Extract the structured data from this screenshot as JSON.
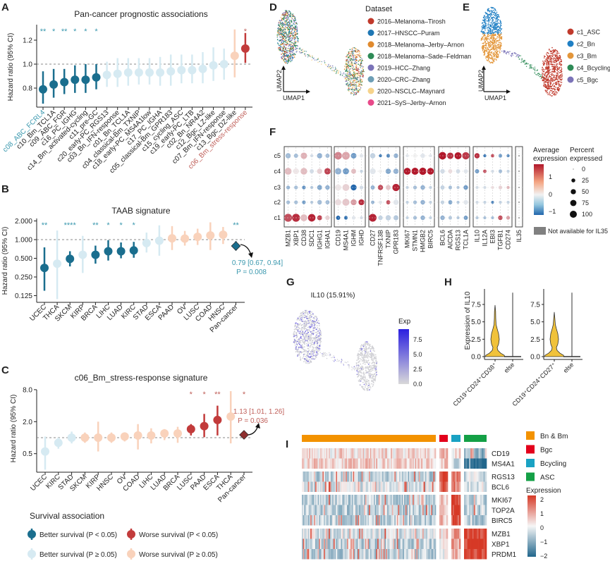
{
  "panels": {
    "A": "A",
    "B": "B",
    "C": "C",
    "D": "D",
    "E": "E",
    "F": "F",
    "G": "G",
    "H": "H",
    "I": "I"
  },
  "colors": {
    "better_sig": "#1a6e8e",
    "better_ns": "#d6eaf2",
    "worse_sig": "#c23b3b",
    "worse_ns": "#f9d2bb",
    "better_text": "#3a98ae",
    "worse_text": "#c0605a"
  },
  "chart_data": [
    {
      "id": "A",
      "type": "scatter",
      "subtype": "forest",
      "title": "Pan-cancer prognostic associations",
      "ylabel": "Hazard ratio (95% CI)",
      "yscale": "linear",
      "ylim": [
        0.65,
        1.32
      ],
      "yticks": [
        "0.8",
        "1.0",
        "1.2"
      ],
      "reference_line": 1.0,
      "categories": [
        "c08_ABC_FCRL4",
        "c10_Bm_TCL1A",
        "c09_ABC_FGR",
        "c16_PC_IGHG",
        "c14_Bm_activated-cycling",
        "c11_pre-GC",
        "c20_early-PC_RGS13",
        "c03_Bn_IFN-response",
        "c01_Bn_TCL1A",
        "c04_classical-Bm_TXNIP",
        "c18_early-PC_MS4A1low",
        "c17_PC_IGHA",
        "c05_classical-Bm_GPR183",
        "c15_cycling_ASC",
        "c19_early-PC_LTB",
        "c02_Bn_NR4A2",
        "c12_Bgc_LZ-like",
        "c07_Bm_IFN-response",
        "c13_Bgc_DZ-like",
        "c06_Bm_stress-response"
      ],
      "hr": [
        0.79,
        0.83,
        0.85,
        0.87,
        0.87,
        0.89,
        0.91,
        0.92,
        0.93,
        0.93,
        0.93,
        0.93,
        0.94,
        0.95,
        0.95,
        0.96,
        0.99,
        1.0,
        1.07,
        1.13
      ],
      "ci_low": [
        0.67,
        0.72,
        0.75,
        0.76,
        0.76,
        0.79,
        0.81,
        0.81,
        0.82,
        0.83,
        0.83,
        0.82,
        0.82,
        0.84,
        0.84,
        0.84,
        0.86,
        0.87,
        0.89,
        1.01
      ],
      "ci_high": [
        0.94,
        0.96,
        0.96,
        0.99,
        1.0,
        1.0,
        1.02,
        1.05,
        1.05,
        1.05,
        1.05,
        1.06,
        1.08,
        1.08,
        1.08,
        1.1,
        1.14,
        1.13,
        1.29,
        1.26
      ],
      "group": [
        "better_sig",
        "better_sig",
        "better_sig",
        "better_sig",
        "better_sig",
        "better_sig",
        "better_ns",
        "better_ns",
        "better_ns",
        "better_ns",
        "better_ns",
        "better_ns",
        "better_ns",
        "better_ns",
        "better_ns",
        "better_ns",
        "better_ns",
        "better_ns",
        "worse_ns",
        "worse_sig"
      ],
      "stars": [
        "**",
        "*",
        "**",
        "*",
        "*",
        "*",
        "",
        "",
        "",
        "",
        "",
        "",
        "",
        "",
        "",
        "",
        "",
        "",
        "",
        "*"
      ],
      "highlight": {
        "c08_ABC_FCRL4": "better_text",
        "c06_Bm_stress-response": "worse_text"
      }
    },
    {
      "id": "B",
      "type": "scatter",
      "subtype": "forest",
      "title": "TAAB signature",
      "ylabel": "Hazard ratio (95% CI)",
      "yscale": "log2",
      "ylim": [
        0.1,
        2.1
      ],
      "yticks": [
        "0.125",
        "0.250",
        "0.500",
        "1.000",
        "2.000"
      ],
      "reference_line": 1.0,
      "categories": [
        "UCEC",
        "THCA",
        "SKCM",
        "KIRP",
        "BRCA",
        "LIHC",
        "LUAD",
        "KIRC",
        "STAD",
        "ESCA",
        "PAAD",
        "OV",
        "LUSC",
        "COAD",
        "HNSC",
        "Pan-cancer"
      ],
      "hr": [
        0.35,
        0.41,
        0.49,
        0.57,
        0.57,
        0.65,
        0.65,
        0.67,
        0.88,
        0.96,
        1.05,
        1.04,
        1.11,
        1.17,
        1.2,
        0.79
      ],
      "ci_low": [
        0.15,
        0.11,
        0.37,
        0.29,
        0.41,
        0.46,
        0.5,
        0.51,
        0.62,
        0.55,
        0.68,
        0.8,
        0.82,
        0.68,
        0.85,
        0.67
      ],
      "ci_high": [
        0.75,
        1.4,
        0.65,
        1.15,
        0.8,
        0.98,
        0.9,
        0.92,
        1.3,
        1.7,
        1.65,
        1.38,
        1.5,
        1.9,
        1.6,
        0.94
      ],
      "group": [
        "better_sig",
        "better_ns",
        "better_sig",
        "better_ns",
        "better_sig",
        "better_sig",
        "better_sig",
        "better_sig",
        "better_ns",
        "better_ns",
        "worse_ns",
        "worse_ns",
        "worse_ns",
        "worse_ns",
        "worse_ns",
        "pan_better"
      ],
      "stars": [
        "**",
        "",
        "****",
        "",
        "**",
        "*",
        "*",
        "*",
        "",
        "",
        "",
        "",
        "",
        "",
        "",
        "**"
      ],
      "annotation": {
        "ci": "0.79 [0.67, 0.94]",
        "p": "P = 0.008"
      }
    },
    {
      "id": "C",
      "type": "scatter",
      "subtype": "forest",
      "title": "c06_Bm_stress-response signature",
      "ylabel": "Hazard ratio (95% CI)",
      "yscale": "log2",
      "ylim": [
        0.3,
        9
      ],
      "yticks": [
        "0.5",
        "2.0",
        "8.0"
      ],
      "reference_line": 1.0,
      "categories": [
        "UCEC",
        "KIRC",
        "STAD",
        "SKCM",
        "KIRP",
        "HNSC",
        "OV",
        "COAD",
        "LIHC",
        "LUAD",
        "BRCA",
        "LUSC",
        "PAAD",
        "ESCA",
        "THCA",
        "Pan-cancer"
      ],
      "hr": [
        0.55,
        0.8,
        1.0,
        1.0,
        1.0,
        1.0,
        1.05,
        1.1,
        1.1,
        1.2,
        1.2,
        1.45,
        1.65,
        2.15,
        2.5,
        1.13
      ],
      "ci_low": [
        0.25,
        0.62,
        0.78,
        0.8,
        0.55,
        0.8,
        0.85,
        0.6,
        0.78,
        0.9,
        0.8,
        1.1,
        1.02,
        1.1,
        0.78,
        1.01
      ],
      "ci_high": [
        1.05,
        1.0,
        1.3,
        1.25,
        2.0,
        1.25,
        1.25,
        1.8,
        1.5,
        1.45,
        1.6,
        1.8,
        2.8,
        4.0,
        7.5,
        1.26
      ],
      "group": [
        "better_ns",
        "better_ns",
        "better_ns",
        "worse_ns",
        "worse_ns",
        "worse_ns",
        "worse_ns",
        "worse_ns",
        "worse_ns",
        "worse_ns",
        "worse_ns",
        "worse_sig",
        "worse_sig",
        "worse_sig",
        "worse_ns",
        "pan_worse"
      ],
      "stars": [
        "",
        "",
        "",
        "",
        "",
        "",
        "",
        "",
        "",
        "",
        "",
        "*",
        "*",
        "**",
        "",
        "*"
      ],
      "annotation": {
        "ci": "1.13 [1.01, 1.26]",
        "p": "P = 0.036"
      }
    },
    {
      "id": "F",
      "type": "heatmap",
      "subtype": "dotplot",
      "rows": [
        "c5",
        "c4",
        "c3",
        "c2",
        "c1"
      ],
      "gene_groups": [
        [
          "MZB1",
          "XBP1",
          "CD38",
          "SDC1",
          "IGHG1",
          "IGHA1"
        ],
        [
          "CD19",
          "MS4A1",
          "IGHM",
          "IGHD"
        ],
        [
          "CD27",
          "TNFRSF13B",
          "TXNIP",
          "GPR183"
        ],
        [
          "MKI67",
          "STMN1",
          "HMGB2",
          "BIRC5"
        ],
        [
          "BCL6",
          "AICDA",
          "RGS13",
          "TCL1A"
        ],
        [
          "IL10",
          "IL12A",
          "EBI3",
          "TGFB1",
          "CD274"
        ],
        [
          "IL35"
        ]
      ],
      "note_row_order": "values listed c1,c2,c3,c4,c5",
      "avg_expression": {
        "MZB1": [
          1.5,
          -0.5,
          -0.6,
          0.5,
          -0.5
        ],
        "XBP1": [
          1.8,
          -0.5,
          -0.5,
          0.1,
          -0.5
        ],
        "CD38": [
          0.5,
          -0.8,
          -0.9,
          0.5,
          0.6
        ],
        "SDC1": [
          1.9,
          -0.4,
          -0.4,
          -0.2,
          -0.2
        ],
        "IGHG1": [
          1.6,
          -0.5,
          -0.7,
          0.3,
          -0.6
        ],
        "IGHA1": [
          0.3,
          -0.5,
          -0.6,
          1.6,
          -0.5
        ],
        "CD19": [
          -1.3,
          0.2,
          0.1,
          -0.6,
          1.0
        ],
        "MS4A1": [
          -1.2,
          0.4,
          0.3,
          -0.8,
          0.7
        ],
        "IGHM": [
          -0.1,
          0.8,
          -1.3,
          0.5,
          -0.8
        ],
        "IGHD": [
          -0.2,
          1.8,
          -0.2,
          -0.3,
          -0.1
        ],
        "CD27": [
          1.9,
          -0.6,
          -0.6,
          -0.1,
          -0.3
        ],
        "TNFRSF13B": [
          -0.3,
          -0.1,
          1.5,
          0,
          -1.2
        ],
        "TXNIP": [
          -0.3,
          1.5,
          0.4,
          -0.7,
          -1.0
        ],
        "GPR183": [
          -0.4,
          -0.1,
          1.9,
          -0.6,
          -0.6
        ],
        "MKI67": [
          -0.3,
          -0.3,
          -0.3,
          2,
          -0.1
        ],
        "STMN1": [
          -0.5,
          -0.5,
          -0.5,
          2,
          0
        ],
        "HMGB2": [
          -0.6,
          -0.6,
          -0.6,
          2,
          -0.1
        ],
        "BIRC5": [
          -0.3,
          -0.3,
          -0.3,
          2,
          -0.1
        ],
        "BCL6": [
          -0.6,
          -0.3,
          -0.3,
          -0.2,
          2
        ],
        "AICDA": [
          -0.4,
          -0.7,
          -0.5,
          0.2,
          1.8
        ],
        "RGS13": [
          -0.4,
          -0.4,
          -0.4,
          -0.2,
          2
        ],
        "TCL1A": [
          -0.8,
          -0.1,
          -0.8,
          -0.1,
          1.7
        ],
        "IL10": [
          -0.4,
          -0.2,
          -0.2,
          -0.8,
          1.8
        ],
        "IL12A": [
          -0.5,
          -0.3,
          -0.2,
          1.5,
          -1.2
        ],
        "EBI3": [
          -0.5,
          -1,
          0.2,
          -0.2,
          1.5
        ],
        "TGFB1": [
          1.5,
          -0.3,
          0.3,
          -0.5,
          -0.8
        ],
        "CD274": [
          0.8,
          -0.3,
          0.6,
          -0.3,
          -1.0
        ]
      },
      "percent_expressed": {
        "MZB1": [
          85,
          10,
          10,
          60,
          30
        ],
        "XBP1": [
          85,
          10,
          10,
          40,
          15
        ],
        "CD38": [
          60,
          10,
          10,
          55,
          50
        ],
        "SDC1": [
          75,
          5,
          5,
          15,
          5
        ],
        "IGHG1": [
          25,
          20,
          25,
          30,
          30
        ],
        "IGHA1": [
          20,
          15,
          20,
          50,
          15
        ],
        "CD19": [
          15,
          45,
          45,
          50,
          75
        ],
        "MS4A1": [
          10,
          65,
          60,
          45,
          80
        ],
        "IGHM": [
          10,
          40,
          40,
          25,
          35
        ],
        "IGHD": [
          5,
          40,
          10,
          5,
          10
        ],
        "CD27": [
          80,
          8,
          15,
          40,
          30
        ],
        "TNFRSF13B": [
          20,
          8,
          30,
          10,
          5
        ],
        "TXNIP": [
          30,
          15,
          25,
          30,
          10
        ],
        "GPR183": [
          25,
          30,
          70,
          30,
          20
        ],
        "MKI67": [
          5,
          5,
          5,
          60,
          5
        ],
        "STMN1": [
          10,
          10,
          10,
          65,
          15
        ],
        "HMGB2": [
          20,
          20,
          20,
          70,
          20
        ],
        "BIRC5": [
          5,
          5,
          5,
          55,
          5
        ],
        "BCL6": [
          20,
          10,
          15,
          20,
          75
        ],
        "AICDA": [
          10,
          15,
          10,
          15,
          50
        ],
        "RGS13": [
          5,
          5,
          5,
          15,
          65
        ],
        "TCL1A": [
          15,
          20,
          20,
          15,
          70
        ],
        "IL10": [
          5,
          5,
          5,
          15,
          30
        ],
        "IL12A": [
          5,
          5,
          5,
          8,
          5
        ],
        "EBI3": [
          5,
          5,
          5,
          5,
          8
        ],
        "TGFB1": [
          20,
          5,
          10,
          10,
          10
        ],
        "CD274": [
          10,
          5,
          5,
          5,
          5
        ]
      },
      "color_legend": {
        "title1": "Average",
        "title2": "expression",
        "ticks": [
          "1",
          "0",
          "−1"
        ]
      },
      "size_legend": {
        "title1": "Percent",
        "title2": "expressed",
        "ticks": [
          "0",
          "25",
          "50",
          "75",
          "100"
        ]
      },
      "na_note": "Not available for IL35"
    }
  ],
  "legend_survival": {
    "title": "Survival association",
    "items": [
      "Better survival (P < 0.05)",
      "Worse survival (P < 0.05)",
      "Better survival (P ≥ 0.05)",
      "Worse survival (P ≥ 0.05)"
    ]
  },
  "panel_D": {
    "axis_x": "UMAP1",
    "axis_y": "UMAP2",
    "legend_title": "Dataset",
    "datasets": [
      {
        "label": "2016–Melanoma–Tirosh",
        "color": "#c0392b"
      },
      {
        "label": "2017–HNSCC–Puram",
        "color": "#1f77b4"
      },
      {
        "label": "2018–Melanoma–Jerby–Arnon",
        "color": "#e08a2e"
      },
      {
        "label": "2018–Melanoma–Sade–Feldman",
        "color": "#2e8b57"
      },
      {
        "label": "2019–HCC–Zhang",
        "color": "#7b73b8"
      },
      {
        "label": "2020–CRC–Zhang",
        "color": "#6d9eb5"
      },
      {
        "label": "2020–NSCLC–Maynard",
        "color": "#f6d38b"
      },
      {
        "label": "2021–SyS–Jerby–Arnon",
        "color": "#e84a8a"
      }
    ]
  },
  "panel_E": {
    "axis_x": "UMAP1",
    "axis_y": "UMAP2",
    "clusters": [
      {
        "label": "c1_ASC",
        "color": "#c0392b"
      },
      {
        "label": "c2_Bn",
        "color": "#1f7fc4"
      },
      {
        "label": "c3_Bm",
        "color": "#e3963a"
      },
      {
        "label": "c4_Bcycling",
        "color": "#2e8b57"
      },
      {
        "label": "c5_Bgc",
        "color": "#7b73b8"
      }
    ]
  },
  "panel_G": {
    "title": "IL10 (15.91%)",
    "legend_title": "Exp",
    "ticks": [
      "7.5",
      "5.0",
      "2.5",
      "0.0"
    ],
    "color_high": "#2b1fe0",
    "color_low": "#d9d9d9"
  },
  "panel_H": {
    "ylabel": "Expression of IL10",
    "yticks": [
      "0.0",
      "2.5",
      "5.0",
      "7.5"
    ],
    "plots": [
      {
        "groups": [
          "CD19⁺CD24⁺CD38⁺",
          "else"
        ]
      },
      {
        "groups": [
          "CD19⁺CD24⁺CD27⁺",
          "else"
        ]
      }
    ],
    "violin_color": "#f0c23b"
  },
  "panel_I": {
    "groups": [
      {
        "label": "Bn & Bm",
        "color": "#f39200"
      },
      {
        "label": "Bgc",
        "color": "#e3001b"
      },
      {
        "label": "Bcycling",
        "color": "#1aa2c3"
      },
      {
        "label": "ASC",
        "color": "#14a046"
      }
    ],
    "gene_blocks": [
      [
        "CD19",
        "MS4A1"
      ],
      [
        "RGS13",
        "BCL6"
      ],
      [
        "MKI67",
        "TOP2A",
        "BIRC5"
      ],
      [
        "MZB1",
        "XBP1",
        "PRDM1"
      ]
    ],
    "legend_title": "Expression",
    "ticks": [
      "2",
      "1",
      "0",
      "−1",
      "−2"
    ]
  }
}
